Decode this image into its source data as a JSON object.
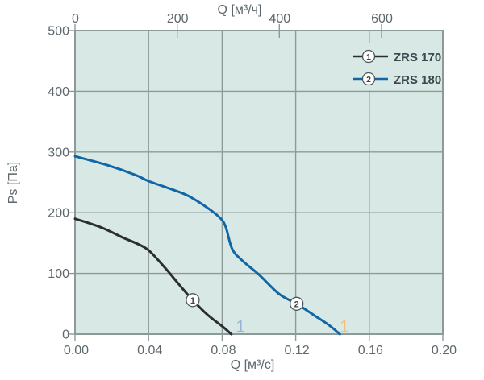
{
  "chart_data": {
    "type": "line",
    "plot_bg_color": "#d8e9e5",
    "grid_color": "#8d9a9a",
    "tick_text_color": "#5d676c",
    "axes": {
      "bottom": {
        "label": "Q [м³/с]",
        "range": [
          0,
          0.2
        ],
        "ticks": [
          {
            "value": 0.0,
            "label": "0.00"
          },
          {
            "value": 0.04,
            "label": "0.04"
          },
          {
            "value": 0.08,
            "label": "0.08"
          },
          {
            "value": 0.12,
            "label": "0.12"
          },
          {
            "value": 0.16,
            "label": "0.16"
          },
          {
            "value": 0.2,
            "label": "0.20"
          }
        ]
      },
      "top": {
        "label": "Q [м³/ч]",
        "unit_conversion_divisor": 3600,
        "ticks": [
          {
            "value": 0,
            "label": "0"
          },
          {
            "value": 200,
            "label": "200"
          },
          {
            "value": 400,
            "label": "400"
          },
          {
            "value": 600,
            "label": "600"
          }
        ]
      },
      "left": {
        "label": "Ps [Па]",
        "range": [
          0,
          500
        ],
        "ticks": [
          {
            "value": 0,
            "label": "0"
          },
          {
            "value": 100,
            "label": "100"
          },
          {
            "value": 200,
            "label": "200"
          },
          {
            "value": 300,
            "label": "300"
          },
          {
            "value": 400,
            "label": "400"
          },
          {
            "value": 500,
            "label": "500"
          }
        ]
      }
    },
    "series": [
      {
        "name": "ZRS 170",
        "marker_digit": "1",
        "color": "#2b2e30",
        "marker_at": {
          "q": 0.064,
          "ps": 56
        },
        "points": [
          [
            0,
            190
          ],
          [
            0.014,
            176
          ],
          [
            0.026,
            159
          ],
          [
            0.033,
            150
          ],
          [
            0.04,
            138
          ],
          [
            0.049,
            109
          ],
          [
            0.0565,
            82
          ],
          [
            0.064,
            56
          ],
          [
            0.072,
            32
          ],
          [
            0.08,
            13
          ],
          [
            0.085,
            0
          ]
        ]
      },
      {
        "name": "ZRS 180",
        "marker_digit": "2",
        "color": "#1066a6",
        "marker_at": {
          "q": 0.1205,
          "ps": 50
        },
        "points": [
          [
            0,
            293
          ],
          [
            0.018,
            278
          ],
          [
            0.033,
            262
          ],
          [
            0.04,
            252
          ],
          [
            0.054,
            237
          ],
          [
            0.062,
            227
          ],
          [
            0.072,
            208
          ],
          [
            0.079,
            191
          ],
          [
            0.082,
            176
          ],
          [
            0.0855,
            140
          ],
          [
            0.091,
            121
          ],
          [
            0.1,
            98
          ],
          [
            0.111,
            66
          ],
          [
            0.1205,
            50
          ],
          [
            0.13,
            31
          ],
          [
            0.138,
            15
          ],
          [
            0.144,
            0
          ]
        ]
      }
    ],
    "legend": {
      "label_color": "#3c474e",
      "items": [
        {
          "marker_digit": "1",
          "label": "ZRS 170",
          "color": "#2b2e30"
        },
        {
          "marker_digit": "2",
          "label": "ZRS 180",
          "color": "#1066a6"
        }
      ]
    },
    "annotations": [
      {
        "text": "1",
        "color": "#98b4d3",
        "q": 0.09,
        "ps": 3
      },
      {
        "text": "1",
        "color": "#f0bf7b",
        "q": 0.1465,
        "ps": 3
      }
    ]
  }
}
